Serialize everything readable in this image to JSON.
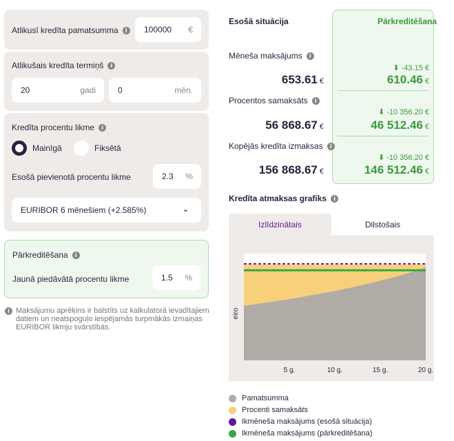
{
  "left": {
    "balance": {
      "label": "Atlikusī kredīta pamatsumma",
      "value": "100000",
      "unit": "€"
    },
    "term": {
      "label": "Atlikušais kredīta termiņš",
      "years_value": "20",
      "years_unit": "gadi",
      "months_value": "0",
      "months_unit": "mēn."
    },
    "rate": {
      "label": "Kredīta procentu likme",
      "option_variable": "Mainīgā",
      "option_fixed": "Fiksētā",
      "selected": "Mainīgā",
      "margin_label": "Esošā pievienotā procentu likme",
      "margin_value": "2.3",
      "margin_unit": "%",
      "euribor_selected": "EURIBOR 6 mēnešiem (+2.585%)"
    },
    "refinance": {
      "title": "Pārkreditēšana",
      "rate_label": "Jaunā piedāvātā procentu likme",
      "rate_value": "1.5",
      "rate_unit": "%"
    },
    "note": "Maksājumu aprēķins ir balstīts uz kalkulatorā ievadītajiem datiem un neatspoguļo iespējamās turpmākās izmaiņas EURIBOR likmju svārstībās."
  },
  "right": {
    "current_title": "Esošā situācija",
    "refinance_title": "Pārkreditēšana",
    "currency": "€",
    "rows": [
      {
        "label": "Mēneša maksājums",
        "current": "653.61",
        "delta": "-43.15 €",
        "refinanced": "610.46"
      },
      {
        "label": "Procentos samaksāts",
        "current": "56 868.67",
        "delta": "-10 356.20 €",
        "refinanced": "46 512.46"
      },
      {
        "label": "Kopējās kredīta izmaksas",
        "current": "156 868.67",
        "delta": "-10 356.20 €",
        "refinanced": "146 512.46"
      }
    ],
    "schedule_title": "Kredīta atmaksas grafiks",
    "tabs": [
      {
        "label": "Izlīdzinātais",
        "active": true
      },
      {
        "label": "Dilstošais",
        "active": false
      }
    ]
  },
  "chart_data": {
    "type": "area",
    "ylabel": "eiro",
    "x_ticks": [
      "5 g.",
      "10 g.",
      "15 g.",
      "20 g."
    ],
    "x": [
      0,
      2.5,
      5,
      7.5,
      10,
      12.5,
      15,
      17.5,
      20
    ],
    "xlim": [
      0,
      20
    ],
    "ylim": [
      0,
      700
    ],
    "series": [
      {
        "name": "Pamatsumma",
        "color": "#b0aca5",
        "values": [
          370,
          392,
          415,
          442,
          470,
          503,
          540,
          580,
          630
        ]
      },
      {
        "name": "Procenti samaksāts",
        "color": "#f8d07a",
        "values": [
          280,
          258,
          235,
          208,
          180,
          147,
          110,
          70,
          20
        ]
      },
      {
        "name": "Ikmēneša maksājums (esošā situācija)",
        "color": "#5b189c",
        "values": [
          654,
          654,
          654,
          654,
          654,
          654,
          654,
          654,
          654
        ]
      },
      {
        "name": "Ikmēneša maksājums (pārkreditēšana)",
        "color": "#35a844",
        "values": [
          610,
          610,
          610,
          610,
          610,
          610,
          610,
          610,
          610
        ]
      }
    ]
  }
}
